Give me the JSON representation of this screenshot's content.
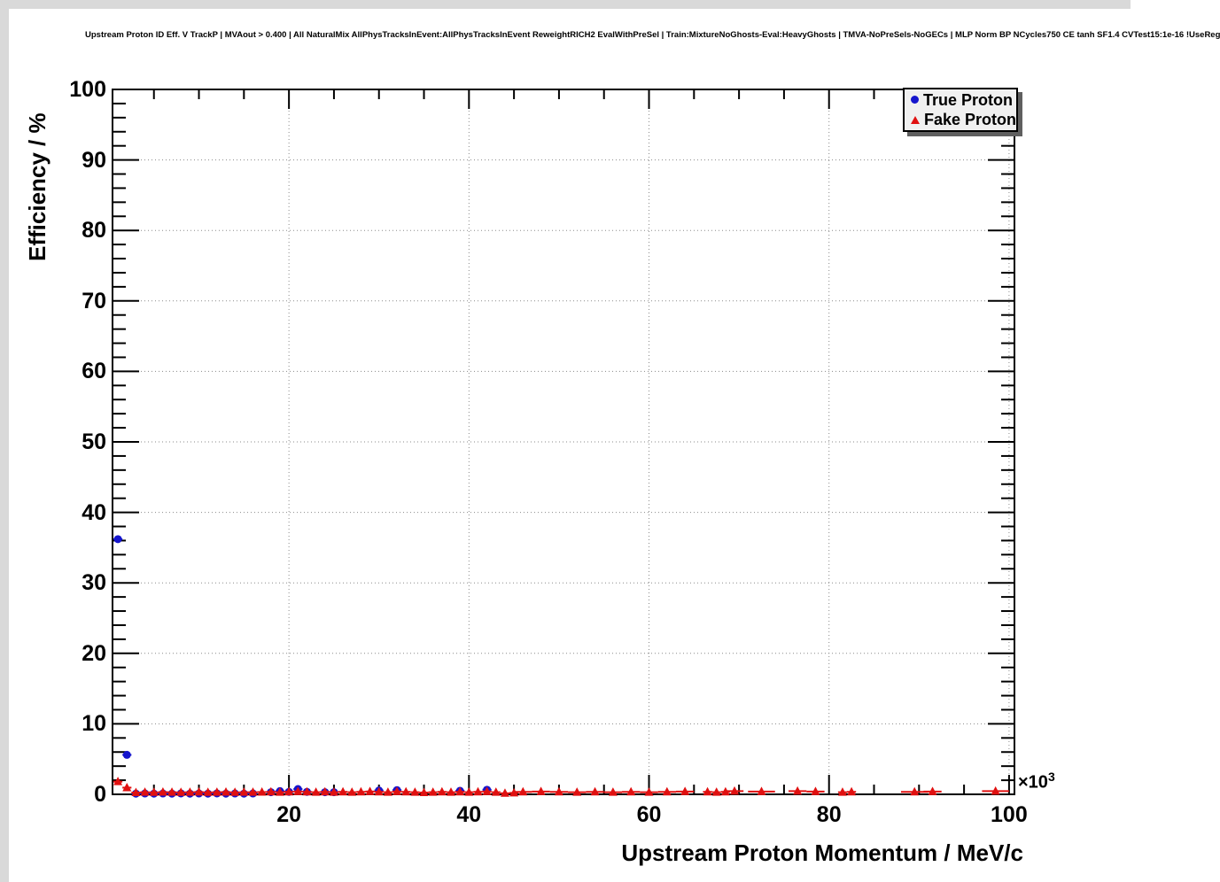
{
  "title": "Upstream Proton ID Eff. V TrackP | MVAout > 0.400 | All NaturalMix AllPhysTracksInEvent:AllPhysTracksInEvent ReweightRICH2 EvalWithPreSel | Train:MixtureNoGhosts-Eval:HeavyGhosts | TMVA-NoPreSels-NoGECs | MLP Norm BP NCycles750 CE tanh SF1.4 CVTest15:1e-16 !UseReg",
  "colors": {
    "true_proton": "#1515cd",
    "fake_proton": "#e01010",
    "grid": "#8a8a8a",
    "frame": "#000000",
    "legend_bg": "#f0f0f0",
    "legend_shadow": "#5f5f5f",
    "canvas_border": "#d9d9d9"
  },
  "chart_data": {
    "type": "scatter",
    "title": "Upstream Proton ID Eff. V TrackP | MVAout > 0.400 | All NaturalMix AllPhysTracksInEvent:AllPhysTracksInEvent ReweightRICH2 EvalWithPreSel | Train:MixtureNoGhosts-Eval:HeavyGhosts | TMVA-NoPreSels-NoGECs | MLP Norm BP NCycles750 CE tanh SF1.4 CVTest15:1e-16 !UseReg",
    "xlabel": "Upstream Proton Momentum / MeV/c",
    "ylabel": "Efficiency / %",
    "x_scale_prefix": "×10",
    "x_scale_exp": "3",
    "x_units_note": "x values in units of 10^3 MeV/c",
    "xlim": [
      0.4,
      100.6
    ],
    "ylim": [
      0,
      100
    ],
    "x_major_ticks": [
      20,
      40,
      60,
      80,
      100
    ],
    "x_minor_step": 5,
    "y_major_ticks": [
      0,
      10,
      20,
      30,
      40,
      50,
      60,
      70,
      80,
      90,
      100
    ],
    "y_minor_step": 2,
    "grid": "dotted-at-major-ticks",
    "legend": {
      "position": "top-right",
      "entries": [
        {
          "label": "True Proton",
          "marker": "circle",
          "color": "#1515cd"
        },
        {
          "label": "Fake Proton",
          "marker": "triangle",
          "color": "#e01010"
        }
      ]
    },
    "series": [
      {
        "name": "True Proton",
        "marker": "circle",
        "color": "#1515cd",
        "points_format": [
          "x",
          "y",
          "xerr",
          "yerr"
        ],
        "points": [
          [
            1,
            36.2,
            0.5,
            0.5
          ],
          [
            2,
            5.6,
            0.5,
            0.3
          ],
          [
            3,
            0.1,
            0.5,
            0
          ],
          [
            4,
            0.12,
            0.5,
            0
          ],
          [
            5,
            0.1,
            0.5,
            0
          ],
          [
            6,
            0.12,
            0.5,
            0
          ],
          [
            7,
            0.1,
            0.5,
            0
          ],
          [
            8,
            0.13,
            0.5,
            0
          ],
          [
            9,
            0.1,
            0.5,
            0
          ],
          [
            10,
            0.12,
            0.5,
            0
          ],
          [
            11,
            0.1,
            0.5,
            0
          ],
          [
            12,
            0.13,
            0.5,
            0
          ],
          [
            13,
            0.1,
            0.5,
            0
          ],
          [
            14,
            0.12,
            0.5,
            0
          ],
          [
            15,
            0.1,
            0.5,
            0
          ],
          [
            16,
            0.12,
            0.5,
            0
          ],
          [
            18,
            0.3,
            0.5,
            0.15
          ],
          [
            19,
            0.45,
            0.5,
            0.15
          ],
          [
            20,
            0.35,
            0.5,
            0.15
          ],
          [
            21,
            0.75,
            0.5,
            0.2
          ],
          [
            22,
            0.35,
            0.5,
            0.15
          ],
          [
            24,
            0.3,
            0.5,
            0.15
          ],
          [
            25,
            0.3,
            0.5,
            0.15
          ],
          [
            30,
            0.55,
            0.5,
            0.2
          ],
          [
            32,
            0.6,
            0.5,
            0.2
          ],
          [
            39,
            0.5,
            0.5,
            0.2
          ],
          [
            42,
            0.65,
            0.5,
            0.25
          ]
        ]
      },
      {
        "name": "Fake Proton",
        "marker": "triangle",
        "color": "#e01010",
        "points_format": [
          "x",
          "y",
          "xerr",
          "yerr"
        ],
        "points": [
          [
            1,
            1.8,
            0.5,
            0.3
          ],
          [
            2,
            0.95,
            0.5,
            0.2
          ],
          [
            3,
            0.25,
            0.5,
            0
          ],
          [
            4,
            0.3,
            0.5,
            0
          ],
          [
            5,
            0.28,
            0.5,
            0
          ],
          [
            6,
            0.32,
            0.5,
            0
          ],
          [
            7,
            0.3,
            0.5,
            0
          ],
          [
            8,
            0.28,
            0.5,
            0
          ],
          [
            9,
            0.3,
            0.5,
            0
          ],
          [
            10,
            0.33,
            0.5,
            0
          ],
          [
            11,
            0.28,
            0.5,
            0
          ],
          [
            12,
            0.3,
            0.5,
            0
          ],
          [
            13,
            0.32,
            0.5,
            0
          ],
          [
            14,
            0.28,
            0.5,
            0
          ],
          [
            15,
            0.3,
            0.5,
            0
          ],
          [
            16,
            0.3,
            0.5,
            0
          ],
          [
            17,
            0.32,
            0.5,
            0
          ],
          [
            18,
            0.35,
            0.5,
            0
          ],
          [
            19,
            0.3,
            0.5,
            0
          ],
          [
            20,
            0.35,
            0.5,
            0
          ],
          [
            21,
            0.4,
            0.5,
            0
          ],
          [
            22,
            0.35,
            0.5,
            0
          ],
          [
            23,
            0.3,
            0.5,
            0
          ],
          [
            24,
            0.35,
            0.5,
            0
          ],
          [
            25,
            0.3,
            0.5,
            0
          ],
          [
            26,
            0.35,
            0.5,
            0
          ],
          [
            27,
            0.3,
            0.5,
            0
          ],
          [
            28,
            0.35,
            0.5,
            0
          ],
          [
            29,
            0.4,
            0.5,
            0
          ],
          [
            30,
            0.35,
            0.5,
            0
          ],
          [
            31,
            0.3,
            0.5,
            0
          ],
          [
            32,
            0.4,
            0.5,
            0
          ],
          [
            33,
            0.35,
            0.5,
            0
          ],
          [
            34,
            0.3,
            0.5,
            0
          ],
          [
            35,
            0.25,
            0.5,
            0
          ],
          [
            36,
            0.3,
            0.5,
            0
          ],
          [
            37,
            0.35,
            0.5,
            0
          ],
          [
            38,
            0.3,
            0.5,
            0
          ],
          [
            39,
            0.35,
            0.5,
            0
          ],
          [
            40,
            0.3,
            0.5,
            0
          ],
          [
            41,
            0.35,
            0.5,
            0
          ],
          [
            42,
            0.4,
            0.5,
            0
          ],
          [
            43,
            0.3,
            0.5,
            0
          ],
          [
            44,
            0.15,
            0.5,
            0
          ],
          [
            45,
            0.2,
            0.5,
            0
          ],
          [
            46,
            0.35,
            1,
            0
          ],
          [
            48,
            0.4,
            1,
            0
          ],
          [
            50,
            0.35,
            1,
            0
          ],
          [
            52,
            0.3,
            1,
            0
          ],
          [
            54,
            0.35,
            1,
            0
          ],
          [
            56,
            0.3,
            1,
            0
          ],
          [
            58,
            0.35,
            1,
            0
          ],
          [
            60,
            0.3,
            1,
            0
          ],
          [
            62,
            0.35,
            1,
            0
          ],
          [
            64,
            0.4,
            1,
            0
          ],
          [
            66.5,
            0.35,
            0.5,
            0
          ],
          [
            67.5,
            0.3,
            0.5,
            0
          ],
          [
            68.5,
            0.35,
            0.5,
            0
          ],
          [
            69.5,
            0.45,
            1,
            0.15
          ],
          [
            72.5,
            0.4,
            1.5,
            0.15
          ],
          [
            76.5,
            0.45,
            1,
            0.15
          ],
          [
            78.5,
            0.4,
            1,
            0.15
          ],
          [
            81.5,
            0.3,
            0.5,
            0
          ],
          [
            82.5,
            0.35,
            0.5,
            0
          ],
          [
            89.5,
            0.35,
            1.5,
            0.15
          ],
          [
            91.5,
            0.4,
            1,
            0.15
          ],
          [
            98.5,
            0.45,
            1.5,
            0.2
          ]
        ]
      }
    ]
  }
}
